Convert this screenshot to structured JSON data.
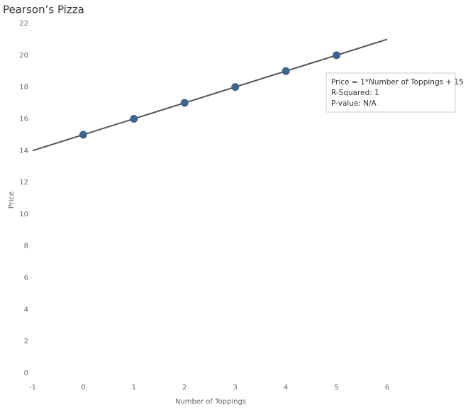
{
  "chart_data": {
    "type": "scatter",
    "title": "Pearson’s Pizza",
    "x_label": "Number of Toppings",
    "y_label": "Price",
    "x": [
      0,
      1,
      2,
      3,
      4,
      5
    ],
    "values": [
      15,
      16,
      17,
      18,
      19,
      20
    ],
    "color": "#3e6590",
    "trendline": {
      "x": [
        -1,
        6
      ],
      "values": [
        14,
        21
      ],
      "color": "#555555"
    },
    "annotation": [
      "Price = 1*Number of Toppings + 15",
      "R-Squared: 1",
      "P-value: N/A"
    ],
    "xlim": [
      -1,
      6
    ],
    "xticks": [
      -1,
      0,
      1,
      2,
      3,
      4,
      5,
      6
    ],
    "ylim": [
      0,
      22
    ],
    "yticks": [
      0,
      2,
      4,
      6,
      8,
      10,
      12,
      14,
      16,
      18,
      20,
      22
    ],
    "grid": false
  }
}
